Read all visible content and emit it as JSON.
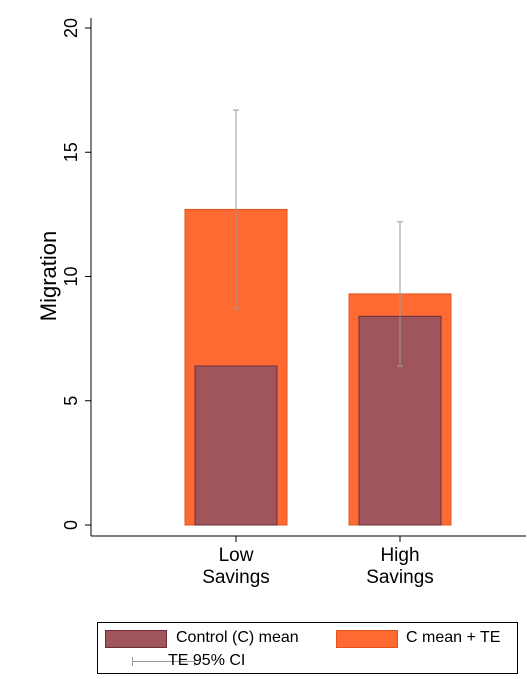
{
  "chart_data": {
    "type": "bar",
    "title": "",
    "ylabel": "Migration",
    "xlabel": "",
    "ylim": [
      0,
      20
    ],
    "yticks": [
      0,
      5,
      10,
      15,
      20
    ],
    "categories": [
      [
        "Low",
        "Savings"
      ],
      [
        "High",
        "Savings"
      ]
    ],
    "series": [
      {
        "name": "Control (C) mean",
        "values": [
          6.4,
          8.4
        ],
        "color": "#a0545c"
      },
      {
        "name": "C mean + TE",
        "values": [
          12.7,
          9.3
        ],
        "color": "#ff6a33"
      }
    ],
    "error_bars": {
      "name": "TE 95% CI",
      "low": [
        8.7,
        6.4
      ],
      "high": [
        16.7,
        12.2
      ],
      "color": "#999999"
    },
    "grid": false,
    "legend_position": "bottom"
  }
}
